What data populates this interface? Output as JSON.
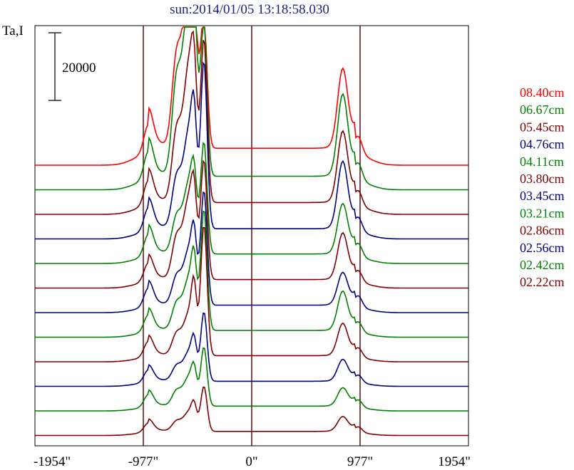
{
  "header": {
    "title": "sun:2014/01/05 13:18:58.030",
    "y_label": "Ta,I"
  },
  "chart_data": {
    "type": "line",
    "title": "sun:2014/01/05 13:18:58.030",
    "ylabel": "Ta,I",
    "xlabel": "",
    "x_ticks": [
      {
        "value": -1954,
        "label": "-1954\""
      },
      {
        "value": -977,
        "label": "-977\""
      },
      {
        "value": 0,
        "label": "0\""
      },
      {
        "value": 977,
        "label": "977\""
      },
      {
        "value": 1954,
        "label": "1954\""
      }
    ],
    "xlim": [
      -1954,
      1954
    ],
    "vertical_lines": [
      -977,
      0,
      977
    ],
    "scale_bar": {
      "value": 20000,
      "label": "20000"
    },
    "grid": false,
    "legend_position": "right",
    "colors": {
      "red": "#ff0000",
      "green": "#008000",
      "maroon": "#800000",
      "navy": "#000080",
      "frame": "#000000",
      "guide": "#4a1010"
    },
    "series": [
      {
        "name": "08.40cm",
        "color": "#ff0000",
        "baseline": 0,
        "peak_main": 54000,
        "peak_secondary": 36000,
        "limb_east": 9000,
        "peak_west": 22000,
        "plateau": 5000
      },
      {
        "name": "06.67cm",
        "color": "#008000",
        "baseline": 0,
        "peak_main": 57000,
        "peak_secondary": 42000,
        "limb_east": 9000,
        "peak_west": 23000,
        "plateau": 4000
      },
      {
        "name": "05.45cm",
        "color": "#800000",
        "baseline": 0,
        "peak_main": 42000,
        "peak_secondary": 46000,
        "limb_east": 8000,
        "peak_west": 20000,
        "plateau": 3500
      },
      {
        "name": "04.76cm",
        "color": "#000080",
        "baseline": 0,
        "peak_main": 30000,
        "peak_secondary": 48000,
        "limb_east": 7500,
        "peak_west": 19000,
        "plateau": 3000
      },
      {
        "name": "04.11cm",
        "color": "#008000",
        "baseline": 0,
        "peak_main": 22000,
        "peak_secondary": 32000,
        "limb_east": 7000,
        "peak_west": 14000,
        "plateau": 2800
      },
      {
        "name": "03.80cm",
        "color": "#800000",
        "baseline": 0,
        "peak_main": 25000,
        "peak_secondary": 34000,
        "limb_east": 6000,
        "peak_west": 13000,
        "plateau": 2500
      },
      {
        "name": "03.45cm",
        "color": "#000080",
        "baseline": 0,
        "peak_main": 17000,
        "peak_secondary": 33000,
        "limb_east": 6000,
        "peak_west": 9000,
        "plateau": 2200
      },
      {
        "name": "03.21cm",
        "color": "#008000",
        "baseline": 0,
        "peak_main": 16000,
        "peak_secondary": 35000,
        "limb_east": 5500,
        "peak_west": 11000,
        "plateau": 2000
      },
      {
        "name": "02.86cm",
        "color": "#800000",
        "baseline": 0,
        "peak_main": 13000,
        "peak_secondary": 38000,
        "limb_east": 5000,
        "peak_west": 9000,
        "plateau": 1800
      },
      {
        "name": "02.56cm",
        "color": "#000080",
        "baseline": 0,
        "peak_main": 9000,
        "peak_secondary": 20000,
        "limb_east": 4000,
        "peak_west": 6000,
        "plateau": 1500
      },
      {
        "name": "02.42cm",
        "color": "#008000",
        "baseline": 0,
        "peak_main": 9000,
        "peak_secondary": 17000,
        "limb_east": 4000,
        "peak_west": 5000,
        "plateau": 1400
      },
      {
        "name": "02.22cm",
        "color": "#800000",
        "baseline": 0,
        "peak_main": 6000,
        "peak_secondary": 13000,
        "limb_east": 3000,
        "peak_west": 4000,
        "plateau": 1200
      }
    ]
  }
}
